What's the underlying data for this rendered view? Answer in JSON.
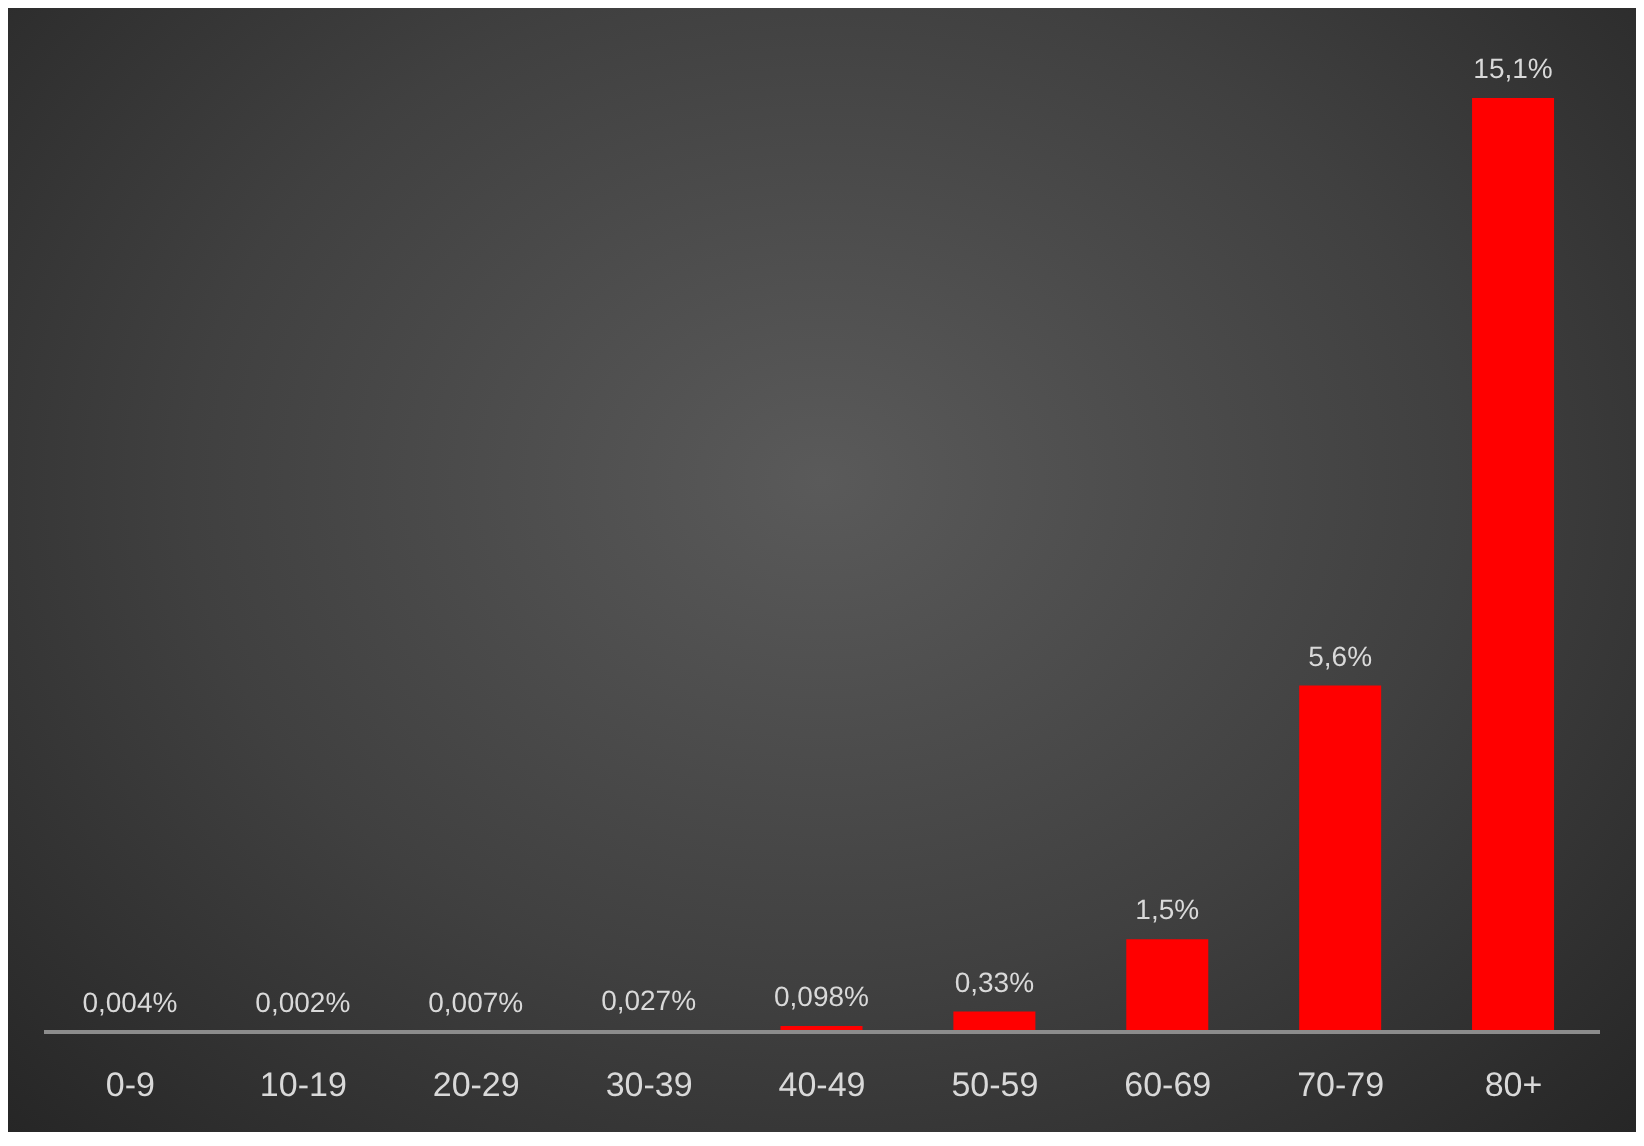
{
  "chart_data": {
    "type": "bar",
    "categories": [
      "0-9",
      "10-19",
      "20-29",
      "30-39",
      "40-49",
      "50-59",
      "60-69",
      "70-79",
      "80+"
    ],
    "values": [
      0.004,
      0.002,
      0.007,
      0.027,
      0.098,
      0.33,
      1.5,
      5.6,
      15.1
    ],
    "color": "#ff0000",
    "value_labels": [
      "0,004%",
      "0,002%",
      "0,007%",
      "0,027%",
      "0,098%",
      "0,33%",
      "1,5%",
      "5,6%",
      "15,1%"
    ]
  }
}
